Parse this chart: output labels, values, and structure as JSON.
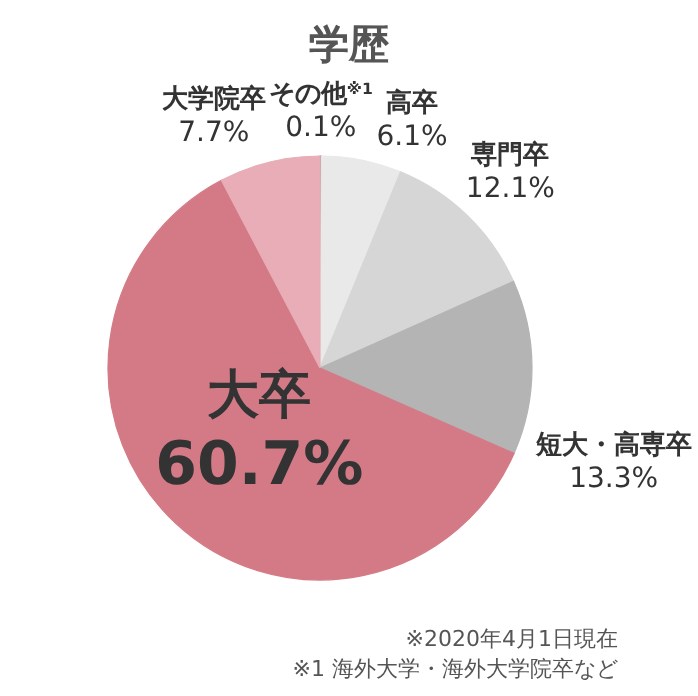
{
  "chart_data": {
    "type": "pie",
    "title": "学歴",
    "categories": [
      "その他$^{※1}$",
      "高卒",
      "専門卒",
      "短大・高専卒",
      "大卒",
      "大学院卒"
    ],
    "values": [
      0.1,
      6.1,
      12.1,
      13.3,
      60.7,
      7.7
    ],
    "value_labels": [
      "0.1%",
      "6.1%",
      "12.1%",
      "13.3%",
      "60.7%",
      "7.7%"
    ],
    "colors": [
      "#8c8c8c",
      "#e9e9e9",
      "#d6d6d6",
      "#b4b4b4",
      "#d47a86",
      "#e8adb7"
    ],
    "annotations": [
      "※2020年4月1日現在",
      "※1 海外大学・海外大学院卒など"
    ]
  }
}
